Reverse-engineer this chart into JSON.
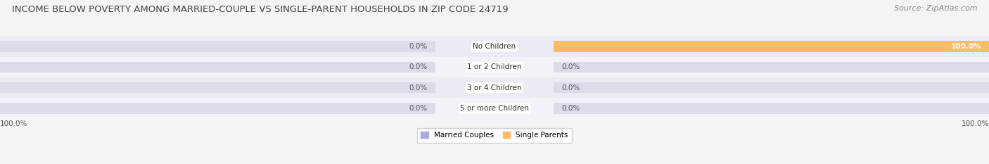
{
  "title": "INCOME BELOW POVERTY AMONG MARRIED-COUPLE VS SINGLE-PARENT HOUSEHOLDS IN ZIP CODE 24719",
  "source": "Source: ZipAtlas.com",
  "categories": [
    "No Children",
    "1 or 2 Children",
    "3 or 4 Children",
    "5 or more Children"
  ],
  "married_values": [
    0.0,
    0.0,
    0.0,
    0.0
  ],
  "single_values": [
    100.0,
    0.0,
    0.0,
    0.0
  ],
  "married_color": "#aaaadd",
  "single_color": "#ffbb66",
  "married_label": "Married Couples",
  "single_label": "Single Parents",
  "bar_bg_color": "#dcdce8",
  "fig_bg_color": "#f4f4f8",
  "row_bg_even": "#ebebf3",
  "row_bg_odd": "#f2f2f8",
  "xlim_left": -100,
  "xlim_right": 100,
  "title_fontsize": 9.5,
  "source_fontsize": 8,
  "label_fontsize": 7.5,
  "val_fontsize": 7.5,
  "bar_height": 0.52,
  "min_bar_width": 8,
  "bottom_left_text": "100.0%",
  "bottom_right_text": "100.0%"
}
